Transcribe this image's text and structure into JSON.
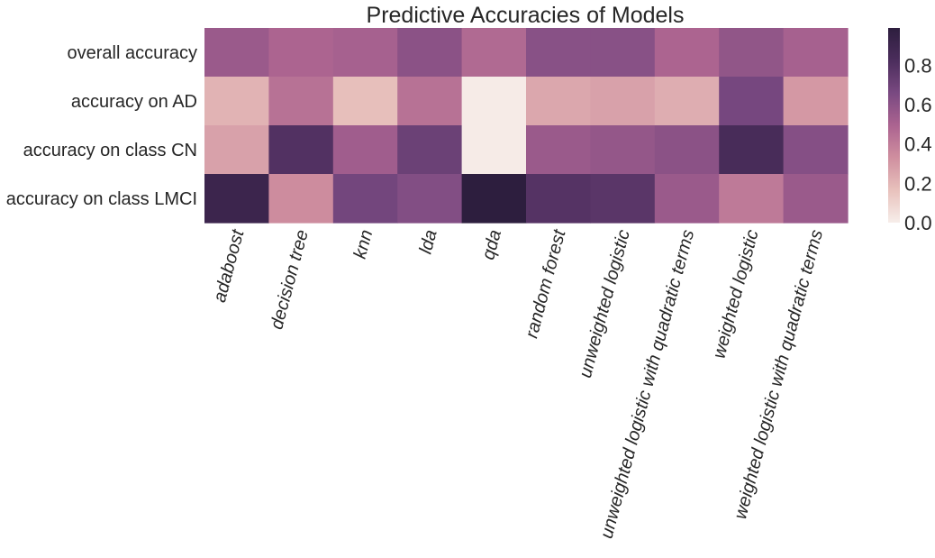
{
  "chart_data": {
    "type": "heatmap",
    "title": "Predictive Accuracies of Models",
    "xlabel": "",
    "ylabel": "",
    "rows": [
      "overall accuracy",
      "accuracy on AD",
      "accuracy on class CN",
      "accuracy on class LMCI"
    ],
    "columns": [
      "adaboost",
      "decision tree",
      "knn",
      "lda",
      "qda",
      "random forest",
      "unweighted logistic",
      "unweighted logistic with quadratic terms",
      "weighted logistic",
      "weighted logistic with quadratic terms"
    ],
    "values": [
      [
        0.55,
        0.49,
        0.51,
        0.6,
        0.47,
        0.61,
        0.61,
        0.49,
        0.58,
        0.51
      ],
      [
        0.21,
        0.44,
        0.17,
        0.44,
        0.01,
        0.25,
        0.27,
        0.23,
        0.67,
        0.3
      ],
      [
        0.27,
        0.8,
        0.53,
        0.71,
        0.01,
        0.55,
        0.57,
        0.6,
        0.84,
        0.62
      ],
      [
        0.91,
        0.34,
        0.68,
        0.63,
        0.99,
        0.79,
        0.77,
        0.55,
        0.41,
        0.55
      ]
    ],
    "vmin": 0.0,
    "vmax": 0.99,
    "colorbar": {
      "ticks": [
        0.0,
        0.2,
        0.4,
        0.6,
        0.8
      ],
      "tick_labels": [
        "0.0",
        "0.2",
        "0.4",
        "0.6",
        "0.8"
      ]
    },
    "colormap_stops": [
      "#f7eeea",
      "#e8c1bc",
      "#cf8f9f",
      "#ab6390",
      "#794981",
      "#4b2d5c",
      "#2d1e3e"
    ],
    "grid": false,
    "legend": "colorbar-right"
  }
}
